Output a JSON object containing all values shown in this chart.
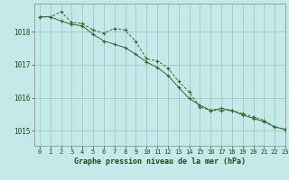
{
  "xlabel": "Graphe pression niveau de la mer (hPa)",
  "background_color": "#c5e8e8",
  "grid_color": "#99cccc",
  "line_color": "#2d6b2d",
  "text_color": "#1a4a1a",
  "spine_color": "#888888",
  "xlim": [
    -0.5,
    23
  ],
  "ylim": [
    1014.55,
    1018.85
  ],
  "yticks": [
    1015,
    1016,
    1017,
    1018
  ],
  "xticks": [
    0,
    1,
    2,
    3,
    4,
    5,
    6,
    7,
    8,
    9,
    10,
    11,
    12,
    13,
    14,
    15,
    16,
    17,
    18,
    19,
    20,
    21,
    22,
    23
  ],
  "series1_x": [
    0,
    1,
    2,
    3,
    4,
    5,
    6,
    7,
    8,
    9,
    10,
    11,
    12,
    13,
    14,
    15,
    16,
    17,
    18,
    19,
    20,
    21,
    22,
    23
  ],
  "series1_y": [
    1018.45,
    1018.45,
    1018.6,
    1018.28,
    1018.25,
    1018.05,
    1017.95,
    1018.1,
    1018.05,
    1017.7,
    1017.18,
    1017.12,
    1016.9,
    1016.5,
    1016.18,
    1015.72,
    1015.62,
    1015.62,
    1015.62,
    1015.52,
    1015.42,
    1015.32,
    1015.12,
    1015.05
  ],
  "series2_x": [
    0,
    1,
    2,
    3,
    4,
    5,
    6,
    7,
    8,
    9,
    10,
    11,
    12,
    13,
    14,
    15,
    16,
    17,
    18,
    19,
    20,
    21,
    22,
    23
  ],
  "series2_y": [
    1018.45,
    1018.45,
    1018.32,
    1018.22,
    1018.18,
    1017.92,
    1017.72,
    1017.62,
    1017.52,
    1017.32,
    1017.08,
    1016.92,
    1016.68,
    1016.32,
    1015.98,
    1015.78,
    1015.62,
    1015.68,
    1015.62,
    1015.48,
    1015.38,
    1015.28,
    1015.12,
    1015.05
  ]
}
